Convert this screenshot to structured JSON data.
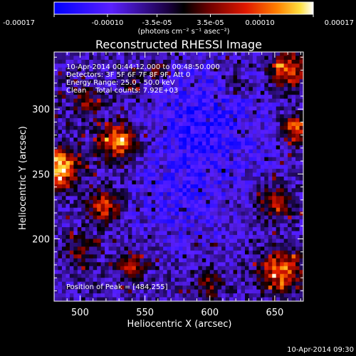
{
  "chart_data": {
    "type": "heatmap",
    "title": "Reconstructed RHESSI Image",
    "xlabel": "Heliocentric X (arcsec)",
    "ylabel": "Heliocentric Y (arcsec)",
    "xlim": [
      480,
      672
    ],
    "ylim": [
      152,
      344
    ],
    "x_ticks": [
      500,
      550,
      600,
      650
    ],
    "y_ticks": [
      200,
      250,
      300
    ],
    "grid": false,
    "colorbar": {
      "location": "top",
      "range": [
        -0.00017,
        0.00017
      ],
      "tick_values": [
        -0.00017,
        -0.0001,
        -3.5e-05,
        3.5e-05,
        0.0001,
        0.00017
      ],
      "tick_labels": [
        "-0.00017",
        "-0.00010",
        "-3.5e-05",
        "3.5e-05",
        "0.00010",
        "0.00017"
      ],
      "units": "(photons cm⁻² s⁻¹ asec⁻²)",
      "colors": [
        "#0000ff",
        "#7a2cff",
        "#000000",
        "#b00000",
        "#ff4000",
        "#ffb000",
        "#ffffff"
      ]
    },
    "annotations": {
      "time_range": "10-Apr-2014 00:44:12.000 to 00:48:50.000",
      "detectors": "Detectors: 3F 5F 6F 7F 8F 9F, Att 0",
      "energy_range": "Energy Range: 25.0 - 50.0 keV",
      "method": "Clean    Total counts: 7.92E+03",
      "peak": "Position of Peak = [484,255]"
    },
    "peak_position": [
      484,
      255
    ]
  },
  "footer": {
    "timestamp": "10-Apr-2014 09:30"
  }
}
